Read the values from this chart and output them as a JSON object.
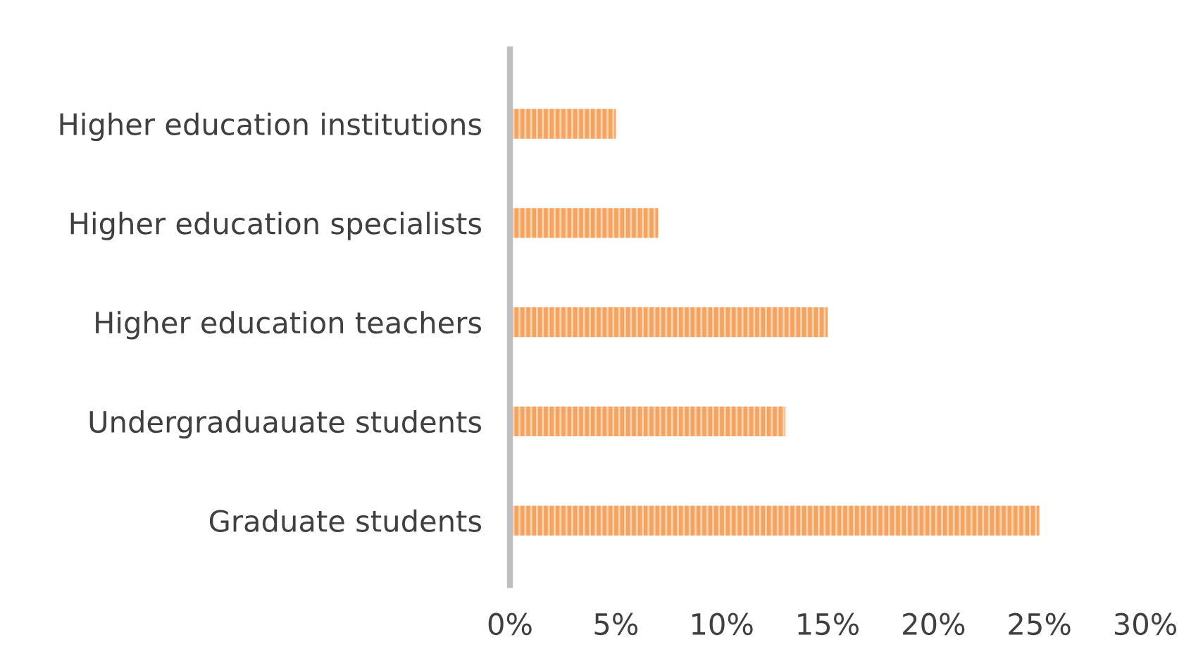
{
  "chart_data": {
    "type": "bar",
    "orientation": "horizontal",
    "categories": [
      "Higher education institutions",
      "Higher education specialists",
      "Higher education teachers",
      "Undergraduauate students",
      "Graduate students"
    ],
    "values": [
      5,
      7,
      15,
      13,
      25
    ],
    "color": "#f4a460",
    "xlim": [
      0,
      30
    ],
    "xticks": [
      {
        "value": 0,
        "label": "0%"
      },
      {
        "value": 5,
        "label": "5%"
      },
      {
        "value": 10,
        "label": "10%"
      },
      {
        "value": 15,
        "label": "15%"
      },
      {
        "value": 20,
        "label": "20%"
      },
      {
        "value": 25,
        "label": "25%"
      },
      {
        "value": 30,
        "label": "30%"
      }
    ],
    "grid": false,
    "legend": false
  }
}
